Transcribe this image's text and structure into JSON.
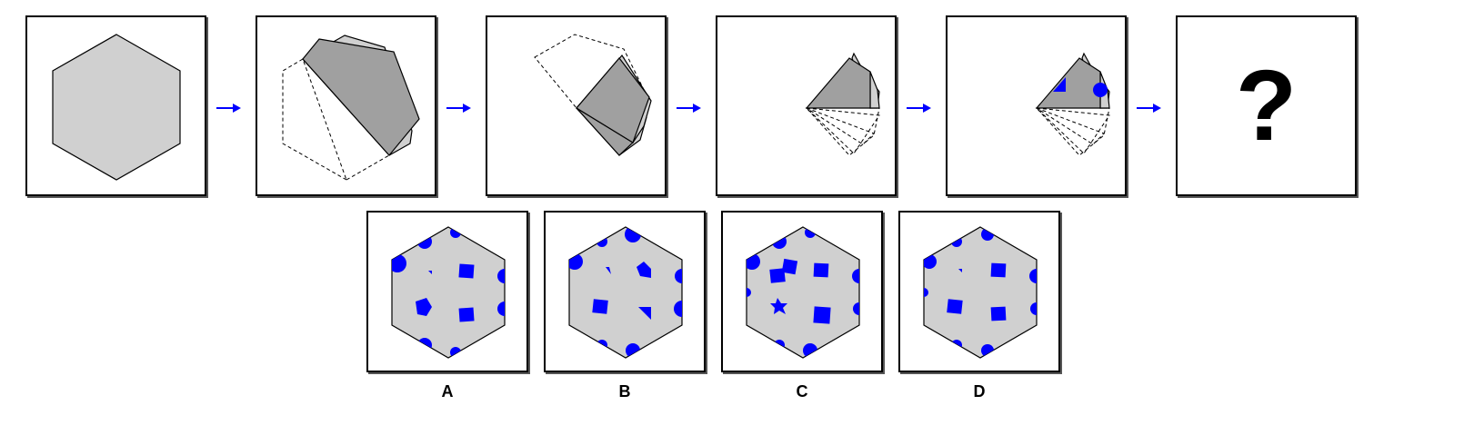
{
  "question": {
    "mark": "?"
  },
  "options": [
    {
      "id": "A",
      "label": "A"
    },
    {
      "id": "B",
      "label": "B"
    },
    {
      "id": "C",
      "label": "C"
    },
    {
      "id": "D",
      "label": "D"
    }
  ],
  "colors": {
    "paper": "#d0d0d0",
    "folded": "#a0a0a0",
    "hole": "#0000ff",
    "arrow": "#0000ff",
    "outline": "#000000"
  }
}
